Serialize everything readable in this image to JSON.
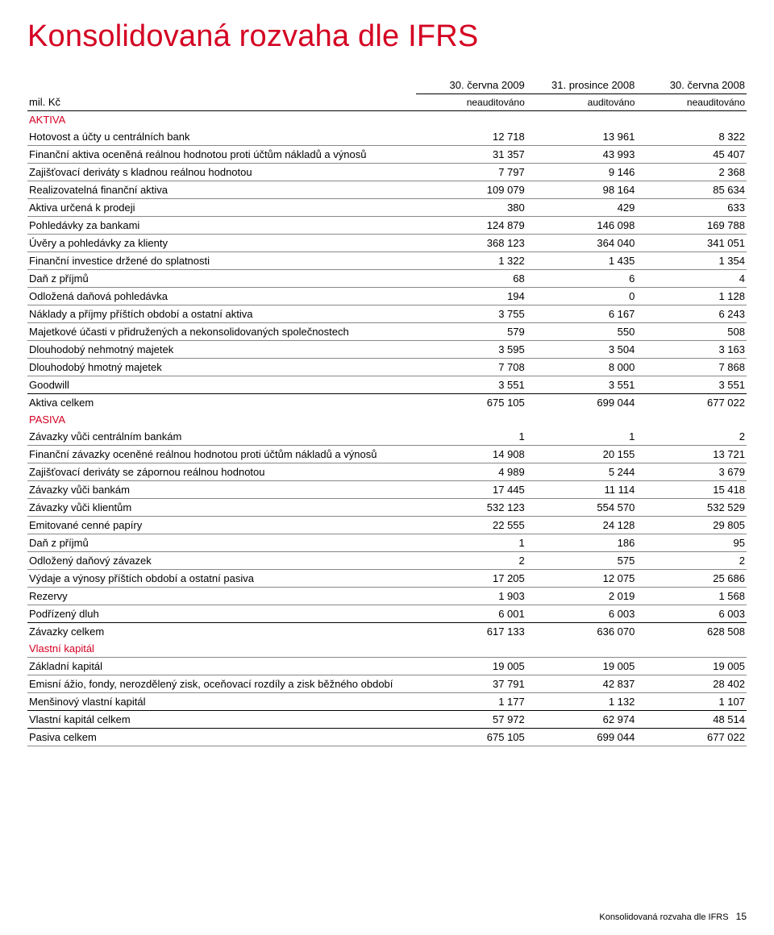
{
  "colors": {
    "title": "#d40022",
    "section": "#d40022",
    "text": "#000000",
    "background": "#ffffff",
    "rule": "#888888",
    "heavy_rule": "#000000"
  },
  "fonts": {
    "title_family": "Arial, Helvetica, sans-serif",
    "title_size_pt": 28,
    "body_size_pt": 10
  },
  "title": "Konsolidovaná rozvaha dle IFRS",
  "header": {
    "unit_label": "mil. Kč",
    "cols": [
      {
        "line1": "30. června 2009",
        "line2": "neauditováno"
      },
      {
        "line1": "31. prosince 2008",
        "line2": "auditováno"
      },
      {
        "line1": "30. června 2008",
        "line2": "neauditováno"
      }
    ]
  },
  "sections": [
    {
      "name": "AKTIVA",
      "rows": [
        {
          "label": "Hotovost a účty u centrálních bank",
          "v": [
            "12 718",
            "13 961",
            "8 322"
          ]
        },
        {
          "label": "Finanční aktiva oceněná reálnou hodnotou proti účtům nákladů a výnosů",
          "v": [
            "31 357",
            "43 993",
            "45 407"
          ]
        },
        {
          "label": "Zajišťovací deriváty s kladnou reálnou hodnotou",
          "v": [
            "7 797",
            "9 146",
            "2 368"
          ]
        },
        {
          "label": "Realizovatelná finanční aktiva",
          "v": [
            "109 079",
            "98 164",
            "85 634"
          ]
        },
        {
          "label": "Aktiva určená k prodeji",
          "v": [
            "380",
            "429",
            "633"
          ]
        },
        {
          "label": "Pohledávky za bankami",
          "v": [
            "124 879",
            "146 098",
            "169 788"
          ]
        },
        {
          "label": "Úvěry a pohledávky za klienty",
          "v": [
            "368 123",
            "364 040",
            "341 051"
          ]
        },
        {
          "label": "Finanční investice držené do splatnosti",
          "v": [
            "1 322",
            "1 435",
            "1 354"
          ]
        },
        {
          "label": "Daň z příjmů",
          "v": [
            "68",
            "6",
            "4"
          ]
        },
        {
          "label": "Odložená daňová pohledávka",
          "v": [
            "194",
            "0",
            "1 128"
          ]
        },
        {
          "label": "Náklady a příjmy příštích období a ostatní aktiva",
          "v": [
            "3 755",
            "6 167",
            "6 243"
          ]
        },
        {
          "label": "Majetkové účasti v přidružených a nekonsolidovaných společnostech",
          "v": [
            "579",
            "550",
            "508"
          ]
        },
        {
          "label": "Dlouhodobý nehmotný majetek",
          "v": [
            "3 595",
            "3 504",
            "3 163"
          ]
        },
        {
          "label": "Dlouhodobý hmotný majetek",
          "v": [
            "7 708",
            "8 000",
            "7 868"
          ]
        },
        {
          "label": "Goodwill",
          "v": [
            "3 551",
            "3 551",
            "3 551"
          ]
        }
      ],
      "total": {
        "label": "Aktiva celkem",
        "v": [
          "675 105",
          "699 044",
          "677 022"
        ]
      }
    },
    {
      "name": "PASIVA",
      "rows": [
        {
          "label": "Závazky vůči centrálním bankám",
          "v": [
            "1",
            "1",
            "2"
          ]
        },
        {
          "label": "Finanční závazky oceněné reálnou hodnotou proti účtům nákladů a výnosů",
          "v": [
            "14 908",
            "20 155",
            "13 721"
          ]
        },
        {
          "label": "Zajišťovací deriváty se zápornou reálnou hodnotou",
          "v": [
            "4 989",
            "5 244",
            "3 679"
          ]
        },
        {
          "label": "Závazky vůči bankám",
          "v": [
            "17 445",
            "11 114",
            "15 418"
          ]
        },
        {
          "label": "Závazky vůči klientům",
          "v": [
            "532 123",
            "554 570",
            "532 529"
          ]
        },
        {
          "label": "Emitované cenné papíry",
          "v": [
            "22 555",
            "24 128",
            "29 805"
          ]
        },
        {
          "label": "Daň z příjmů",
          "v": [
            "1",
            "186",
            "95"
          ]
        },
        {
          "label": "Odložený daňový závazek",
          "v": [
            "2",
            "575",
            "2"
          ]
        },
        {
          "label": "Výdaje a výnosy příštích období a ostatní pasiva",
          "v": [
            "17 205",
            "12 075",
            "25 686"
          ]
        },
        {
          "label": "Rezervy",
          "v": [
            "1 903",
            "2 019",
            "1 568"
          ]
        },
        {
          "label": "Podřízený dluh",
          "v": [
            "6 001",
            "6 003",
            "6 003"
          ]
        }
      ],
      "total": {
        "label": "Závazky celkem",
        "v": [
          "617 133",
          "636 070",
          "628 508"
        ]
      }
    },
    {
      "name": "Vlastní kapitál",
      "rows": [
        {
          "label": "Základní kapitál",
          "v": [
            "19 005",
            "19 005",
            "19 005"
          ]
        },
        {
          "label": "Emisní ážio, fondy, nerozdělený zisk, oceňovací rozdíly a zisk běžného období",
          "v": [
            "37 791",
            "42 837",
            "28 402"
          ]
        },
        {
          "label": "Menšinový vlastní kapitál",
          "v": [
            "1 177",
            "1 132",
            "1 107"
          ]
        }
      ],
      "total": {
        "label": "Vlastní kapitál celkem",
        "v": [
          "57 972",
          "62 974",
          "48 514"
        ]
      },
      "grand_total": {
        "label": "Pasiva celkem",
        "v": [
          "675 105",
          "699 044",
          "677 022"
        ]
      }
    }
  ],
  "footer": {
    "text": "Konsolidovaná rozvaha dle IFRS",
    "page_number": "15"
  }
}
